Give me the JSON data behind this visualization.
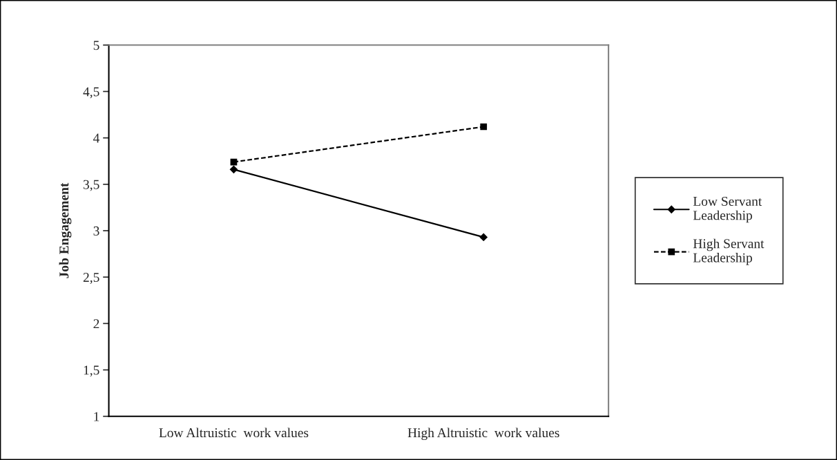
{
  "chart_data": {
    "type": "line",
    "ylabel": "Job Engagement",
    "categories": [
      "Low Altruistic  work values",
      "High Altruistic  work values"
    ],
    "series": [
      {
        "name": "Low Servant Leadership",
        "color": "#000000",
        "values": [
          3.66,
          2.93
        ],
        "marker": "diamond",
        "line_style": "solid"
      },
      {
        "name": "High Servant Leadership",
        "color": "#000000",
        "values": [
          3.74,
          4.12
        ],
        "marker": "square",
        "line_style": "dashed"
      }
    ],
    "ylim": [
      1,
      5
    ],
    "yticks": [
      1,
      {
        "value": 1.5,
        "label": "1,5"
      },
      2,
      {
        "value": 2.5,
        "label": "2,5"
      },
      3,
      {
        "value": 3.5,
        "label": "3,5"
      },
      4,
      {
        "value": 4.5,
        "label": "4,5"
      },
      5
    ],
    "grid": false,
    "legend": "right"
  }
}
